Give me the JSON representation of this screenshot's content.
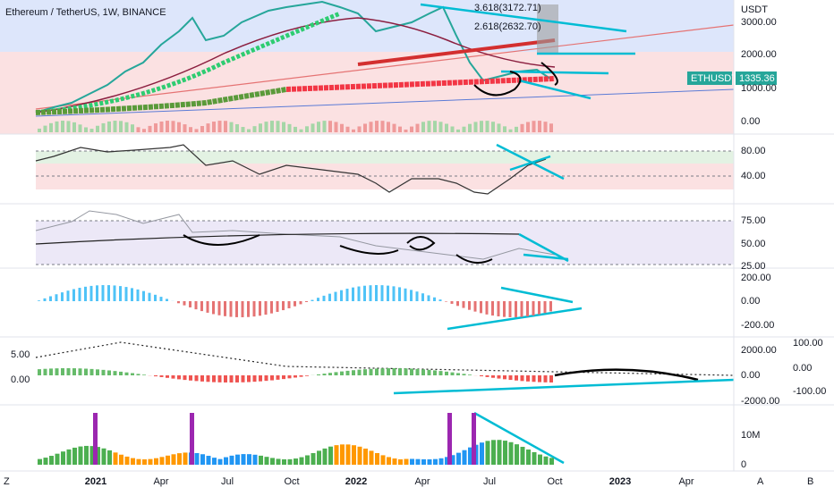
{
  "header": {
    "title": "Ethereum / TetherUS, 1W, BINANCE"
  },
  "price_axis": {
    "unit": "USDT",
    "labels": [
      "3000.00",
      "2000.00",
      "1000.00",
      "0.00"
    ]
  },
  "ticker": {
    "symbol": "ETHUSDT",
    "price": "1335.36"
  },
  "fib_labels": [
    "3.618(3172.71)",
    "2.618(2632.70)"
  ],
  "panes": [
    {
      "labels": [
        "80.00",
        "40.00"
      ]
    },
    {
      "labels": [
        "75.00",
        "50.00",
        "25.00"
      ]
    },
    {
      "labels": [
        "200.00",
        "0.00",
        "-200.00"
      ]
    },
    {
      "left_labels": [
        "5.00",
        "0.00"
      ],
      "labels": [
        "2000.00",
        "0.00",
        "-2000.00"
      ],
      "far_labels": [
        "100.00",
        "0.00",
        "-100.00"
      ]
    },
    {
      "labels": [
        "10M",
        "0"
      ]
    }
  ],
  "time_axis": {
    "labels": [
      "2021",
      "Apr",
      "Jul",
      "Oct",
      "2022",
      "Apr",
      "Jul",
      "Oct",
      "2023",
      "Apr"
    ]
  },
  "footer": {
    "left": "Z",
    "right": [
      "A",
      "B"
    ]
  }
}
